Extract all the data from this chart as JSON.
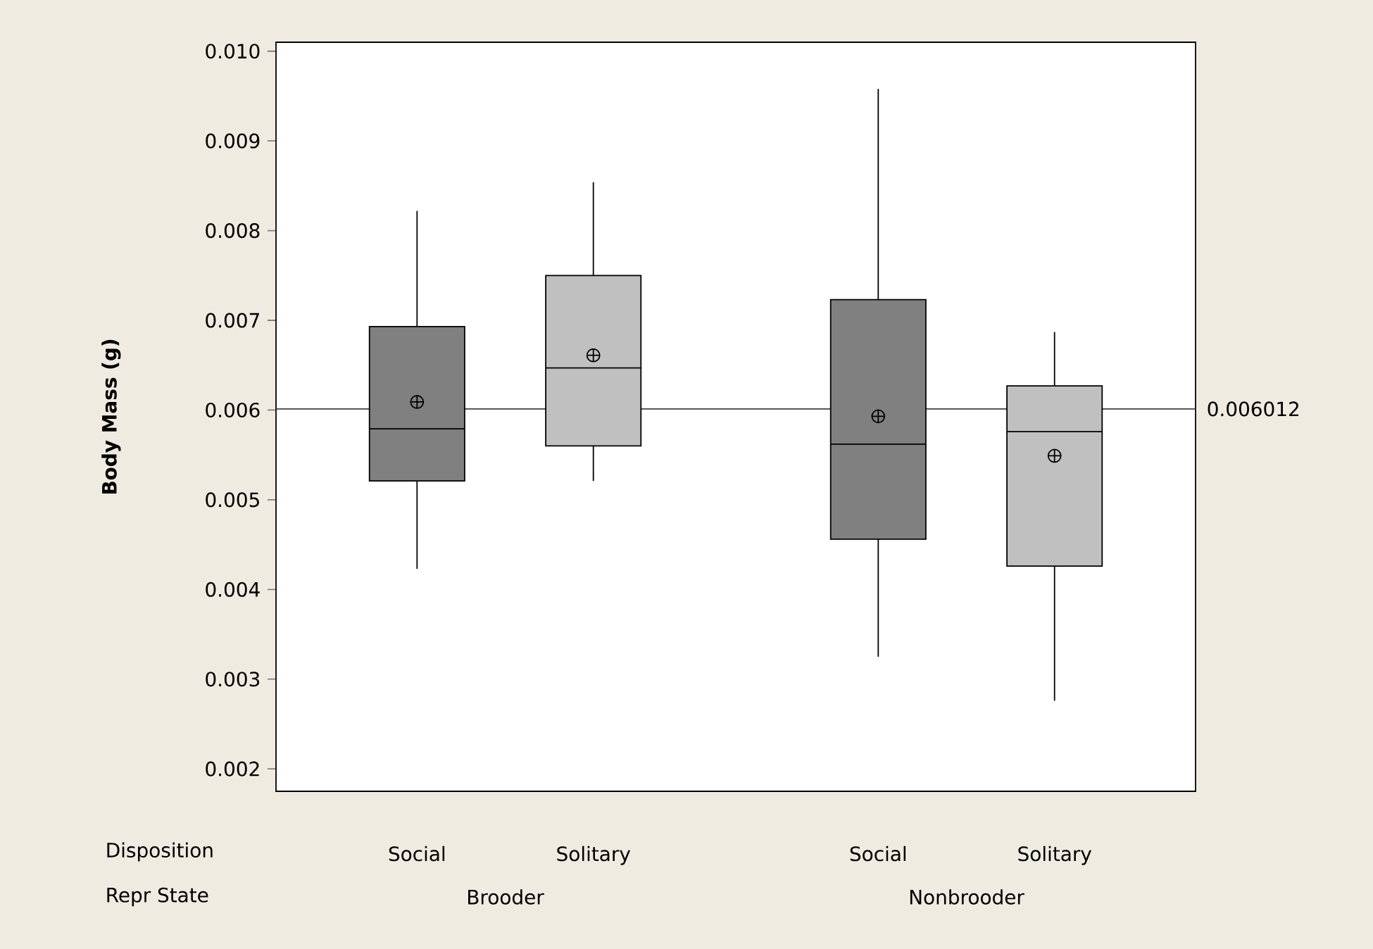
{
  "chart_data": {
    "type": "box",
    "ylabel": "Body Mass (g)",
    "categories": [
      "Social",
      "Solitary",
      "Social",
      "Solitary"
    ],
    "colors": [
      "#808080",
      "#c0c0c0",
      "#808080",
      "#c0c0c0"
    ],
    "boxes": [
      {
        "low": 0.00423,
        "q1": 0.00521,
        "median": 0.00579,
        "q3": 0.00693,
        "high": 0.00822,
        "mean": 0.00609
      },
      {
        "low": 0.00521,
        "q1": 0.0056,
        "median": 0.00647,
        "q3": 0.0075,
        "high": 0.00854,
        "mean": 0.00661
      },
      {
        "low": 0.00325,
        "q1": 0.00456,
        "median": 0.00562,
        "q3": 0.00723,
        "high": 0.00958,
        "mean": 0.00593
      },
      {
        "low": 0.00276,
        "q1": 0.00426,
        "median": 0.00576,
        "q3": 0.00627,
        "high": 0.00687,
        "mean": 0.00549
      }
    ],
    "ylim": [
      0.00175,
      0.0101
    ],
    "yticks": [
      0.002,
      0.003,
      0.004,
      0.005,
      0.006,
      0.007,
      0.008,
      0.009,
      {
        "value": 0.01,
        "label": "0.010"
      }
    ],
    "ref_lines": [
      {
        "axis": "y",
        "value": 0.006012,
        "label": "0.006012",
        "color": "#404040"
      }
    ],
    "annotations": [
      "Disposition",
      "Repr State",
      "Brooder",
      "Nonbrooder"
    ],
    "grid": false
  }
}
